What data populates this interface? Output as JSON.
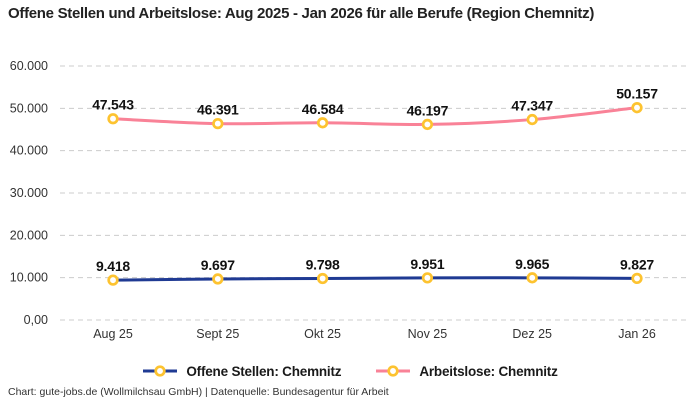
{
  "title": "Offene Stellen und Arbeitslose: Aug 2025 - Jan 2026 für alle Berufe (Region Chemnitz)",
  "footer": "Chart: gute-jobs.de (Wollmilchsau GmbH) | Datenquelle: Bundesagentur für Arbeit",
  "colors": {
    "offene_stellen": "#1F3A93",
    "arbeitslose": "#F98297",
    "marker_ring": "#FDC330",
    "marker_fill": "#FFFFFF",
    "gridline": "#CCCCCC"
  },
  "chart_data": {
    "type": "line",
    "title": "Offene Stellen und Arbeitslose: Aug 2025 - Jan 2026 für alle Berufe (Region Chemnitz)",
    "categories": [
      "Aug 25",
      "Sept 25",
      "Okt 25",
      "Nov 25",
      "Dez 25",
      "Jan 26"
    ],
    "series": [
      {
        "name": "Offene Stellen: Chemnitz",
        "color_key": "offene_stellen",
        "values": [
          9418,
          9697,
          9798,
          9951,
          9965,
          9827
        ],
        "display_labels": [
          "9.418",
          "9.697",
          "9.798",
          "9.951",
          "9.965",
          "9.827"
        ]
      },
      {
        "name": "Arbeitslose: Chemnitz",
        "color_key": "arbeitslose",
        "values": [
          47543,
          46391,
          46584,
          46197,
          47347,
          50157
        ],
        "display_labels": [
          "47.543",
          "46.391",
          "46.584",
          "46.197",
          "47.347",
          "50.157"
        ]
      }
    ],
    "y_ticks": [
      {
        "value": 0,
        "label": "0,00"
      },
      {
        "value": 10000,
        "label": "10.000"
      },
      {
        "value": 20000,
        "label": "20.000"
      },
      {
        "value": 30000,
        "label": "30.000"
      },
      {
        "value": 40000,
        "label": "40.000"
      },
      {
        "value": 50000,
        "label": "50.000"
      },
      {
        "value": 60000,
        "label": "60.000"
      }
    ],
    "ylim": [
      0,
      60000
    ],
    "grid": true,
    "legend_position": "bottom"
  }
}
